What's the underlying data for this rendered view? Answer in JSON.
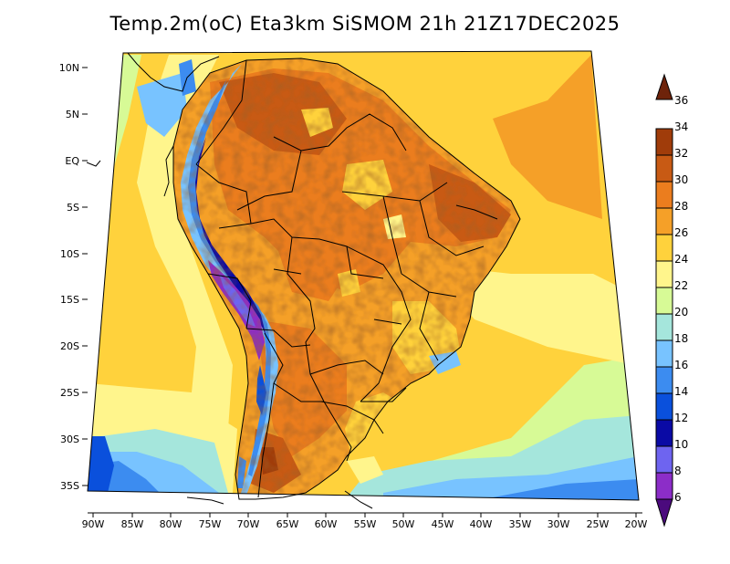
{
  "title": "Temp.2m(oC) Eta3km SiSMOM 21h 21Z17DEC2025",
  "map": {
    "variable": "2m temperature",
    "units": "oC",
    "lat_range": [
      -38,
      11
    ],
    "lon_range": [
      -91,
      -20
    ],
    "lat_ticks": [
      "10N",
      "5N",
      "EQ",
      "5S",
      "10S",
      "15S",
      "20S",
      "25S",
      "30S",
      "35S"
    ],
    "lon_ticks": [
      "90W",
      "85W",
      "80W",
      "75W",
      "70W",
      "65W",
      "60W",
      "55W",
      "50W",
      "45W",
      "40W",
      "35W",
      "30W",
      "25W",
      "20W"
    ]
  },
  "colorbar": {
    "labels": [
      "6",
      "8",
      "10",
      "12",
      "14",
      "16",
      "18",
      "20",
      "22",
      "24",
      "26",
      "28",
      "30",
      "32",
      "34",
      "36"
    ],
    "colors": [
      "#4b0a7d",
      "#8c2dc8",
      "#6e64f0",
      "#0a0aa5",
      "#0a50dc",
      "#3c8cf0",
      "#78c3ff",
      "#a5e6dc",
      "#d7fa96",
      "#fff58c",
      "#ffd23c",
      "#f5a028",
      "#eb7d1e",
      "#c85a14",
      "#a03c0a",
      "#6e230a"
    ]
  }
}
